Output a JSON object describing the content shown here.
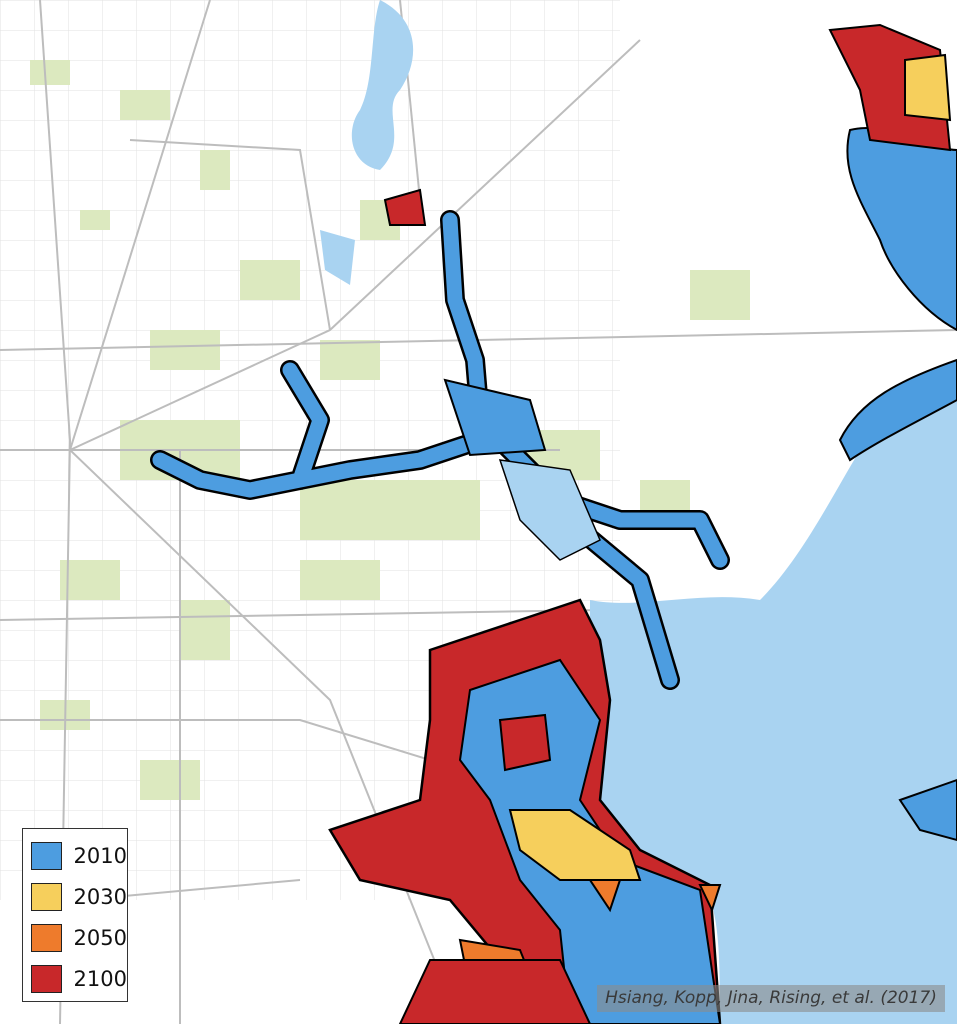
{
  "legend": {
    "items": [
      {
        "label": "2010",
        "color": "#4d9de0"
      },
      {
        "label": "2030",
        "color": "#f6cf5c"
      },
      {
        "label": "2050",
        "color": "#ee7b2c"
      },
      {
        "label": "2100",
        "color": "#c8282a"
      }
    ]
  },
  "attribution": "Hsiang, Kopp, Jina, Rising, et al. (2017)"
}
